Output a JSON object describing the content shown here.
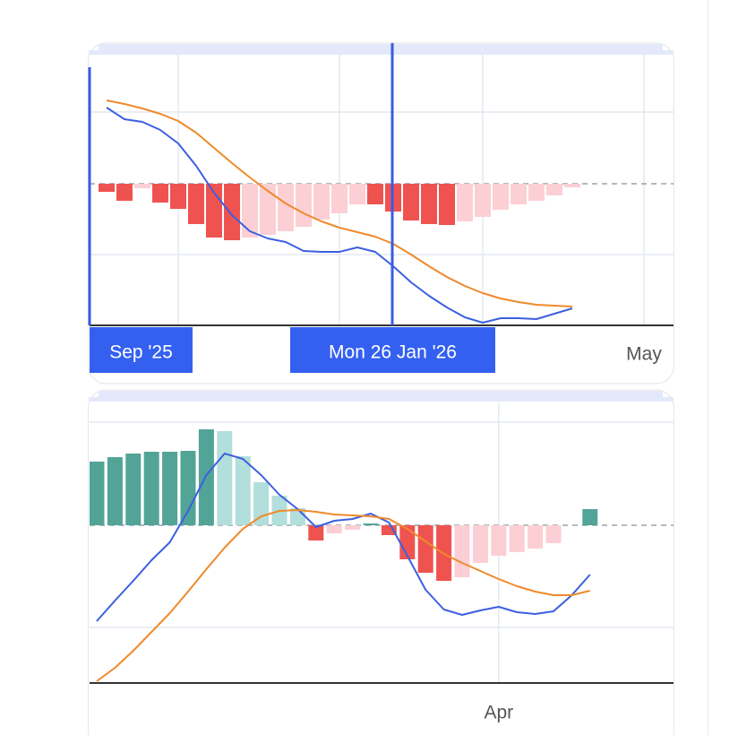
{
  "chart_data": [
    {
      "type": "macd",
      "categories": [
        null,
        null,
        null,
        null,
        null,
        null,
        null,
        null,
        null,
        null,
        null,
        null,
        null,
        null,
        null,
        null,
        null,
        null,
        null,
        null,
        null,
        null,
        null,
        null,
        null,
        null,
        null,
        null,
        null,
        null,
        "May",
        null
      ],
      "crosshair_labels": [
        "Sep '25",
        "Mon 26 Jan '26"
      ],
      "ylim": [
        -15.8,
        14.5
      ],
      "series": [
        {
          "kind": "histogram",
          "colors": {
            "rise_above": "#52a497",
            "fall_above": "#b2dfdb",
            "fall_below": "#ef5350",
            "rise_below": "#fbcfd4"
          },
          "values": [
            -0.9,
            -1.9,
            -0.5,
            -2.1,
            -2.8,
            -4.5,
            -6.0,
            -6.3,
            -6.0,
            -5.7,
            -5.3,
            -4.8,
            -4.0,
            -3.3,
            -2.3,
            -2.3,
            -3.1,
            -4.1,
            -4.5,
            -4.6,
            -4.2,
            -3.7,
            -2.9,
            -2.3,
            -1.9,
            -1.3,
            -0.4,
            null,
            null,
            null,
            null,
            null
          ]
        },
        {
          "kind": "line",
          "color": "#3d5fe0",
          "values": [
            8.5,
            7.2,
            6.9,
            6.0,
            4.5,
            2.0,
            -1.0,
            -3.5,
            -5.3,
            -6.1,
            -6.5,
            -7.5,
            -7.6,
            -7.6,
            -7.1,
            -7.6,
            -9.2,
            -11.0,
            -12.5,
            -13.8,
            -14.9,
            -15.5,
            -15.0,
            -15.0,
            -15.1,
            -14.5,
            -13.9,
            null,
            null,
            null,
            null,
            null
          ]
        },
        {
          "kind": "line",
          "color": "#ef8a2b",
          "values": [
            9.3,
            8.9,
            8.4,
            7.8,
            7.0,
            5.7,
            4.0,
            2.3,
            0.7,
            -0.8,
            -2.2,
            -3.3,
            -4.2,
            -4.9,
            -5.4,
            -5.9,
            -6.7,
            -7.9,
            -9.2,
            -10.4,
            -11.4,
            -12.2,
            -12.8,
            -13.2,
            -13.5,
            -13.6,
            -13.7,
            null,
            null,
            null,
            null,
            null
          ]
        }
      ]
    },
    {
      "type": "macd",
      "categories": [
        null,
        null,
        null,
        null,
        null,
        null,
        null,
        null,
        null,
        null,
        null,
        null,
        null,
        null,
        null,
        null,
        null,
        null,
        null,
        null,
        null,
        null,
        "Apr",
        null,
        null,
        null,
        null,
        null,
        null,
        null,
        null,
        null
      ],
      "ylim": [
        -17.6,
        13.6
      ],
      "series": [
        {
          "kind": "histogram",
          "colors": {
            "rise_above": "#52a497",
            "fall_above": "#b2dfdb",
            "fall_below": "#ef5350",
            "rise_below": "#fbcfd4"
          },
          "values": [
            7.1,
            7.6,
            8.0,
            8.2,
            8.2,
            8.3,
            10.7,
            10.5,
            7.7,
            4.8,
            3.3,
            1.9,
            -1.7,
            -0.9,
            -0.5,
            0.2,
            -1.1,
            -3.8,
            -5.3,
            -6.2,
            -5.8,
            -4.2,
            -3.4,
            -3.0,
            -2.6,
            -2.0,
            0,
            1.8,
            null,
            null,
            null,
            null
          ]
        },
        {
          "kind": "line",
          "color": "#3d5fe0",
          "values": [
            -10.7,
            -8.4,
            -6.2,
            -3.9,
            -1.9,
            1.6,
            5.6,
            8.0,
            7.4,
            5.6,
            3.4,
            1.8,
            -0.2,
            0.5,
            0.7,
            1.3,
            0.3,
            -3.4,
            -7.2,
            -9.4,
            -10.0,
            -9.5,
            -9.1,
            -9.7,
            -9.9,
            -9.6,
            -7.8,
            -5.5,
            null,
            null,
            null,
            null
          ]
        },
        {
          "kind": "line",
          "color": "#ef8a2b",
          "values": [
            -17.4,
            -15.9,
            -14.0,
            -11.9,
            -9.8,
            -7.4,
            -4.9,
            -2.5,
            -0.4,
            1.0,
            1.6,
            1.7,
            1.5,
            1.2,
            1.1,
            1.0,
            0.7,
            -0.4,
            -1.8,
            -3.2,
            -4.2,
            -5.1,
            -6.0,
            -6.8,
            -7.4,
            -7.8,
            -7.8,
            -7.3,
            null,
            null,
            null,
            null
          ]
        }
      ]
    }
  ]
}
